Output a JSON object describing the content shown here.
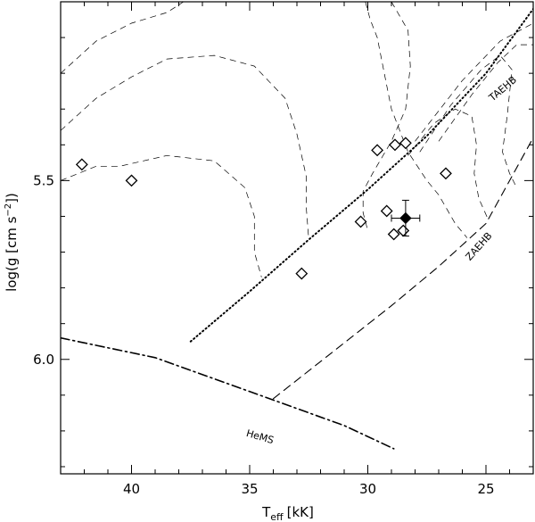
{
  "chart_data": {
    "type": "scatter",
    "title": "",
    "xlabel": "T",
    "xlabel_sub": "eff",
    "xlabel_unit": "[kK]",
    "ylabel": "log(g [cm s",
    "ylabel_sup": "−2",
    "ylabel_close": "])",
    "xlim": [
      43,
      23
    ],
    "ylim": [
      5.0,
      6.32
    ],
    "x_reversed": true,
    "y_reversed": true,
    "grid": false,
    "x_ticks": [
      {
        "value": 40,
        "label": "40"
      },
      {
        "value": 35,
        "label": "35"
      },
      {
        "value": 30,
        "label": "30"
      },
      {
        "value": 25,
        "label": "25"
      }
    ],
    "y_ticks": [
      {
        "value": 5.5,
        "label": "5.5"
      },
      {
        "value": 6.0,
        "label": "6.0"
      }
    ],
    "x_minor_step": 1,
    "y_minor_step": 0.1,
    "sample": {
      "marker": "open-diamond",
      "points": [
        [
          42.1,
          5.455
        ],
        [
          40.0,
          5.5
        ],
        [
          29.6,
          5.415
        ],
        [
          28.85,
          5.4
        ],
        [
          28.4,
          5.395
        ],
        [
          26.7,
          5.48
        ],
        [
          30.3,
          5.615
        ],
        [
          29.2,
          5.585
        ],
        [
          28.9,
          5.65
        ],
        [
          28.5,
          5.64
        ],
        [
          32.8,
          5.76
        ]
      ]
    },
    "target": {
      "marker": "filled-diamond",
      "x": 28.4,
      "y": 5.605,
      "x_err": 0.6,
      "y_err": 0.05
    },
    "curves": [
      {
        "name": "TAEHB",
        "style": "dotted",
        "label_at": [
          24.2,
          5.25
        ],
        "label_angle": -40,
        "points": [
          [
            37.5,
            5.95
          ],
          [
            35.0,
            5.81
          ],
          [
            32.5,
            5.665
          ],
          [
            30.0,
            5.525
          ],
          [
            27.5,
            5.375
          ],
          [
            25.0,
            5.2
          ],
          [
            23.0,
            5.02
          ]
        ]
      },
      {
        "name": "ZAEHB",
        "style": "dashed",
        "label_at": [
          25.2,
          5.69
        ],
        "label_angle": -48,
        "points": [
          [
            34.0,
            6.11
          ],
          [
            31.5,
            5.98
          ],
          [
            29.0,
            5.85
          ],
          [
            27.0,
            5.74
          ],
          [
            25.0,
            5.62
          ],
          [
            23.0,
            5.38
          ]
        ]
      },
      {
        "name": "HeMS",
        "style": "dash-dot",
        "label_at": [
          34.6,
          6.225
        ],
        "label_angle": 16,
        "points": [
          [
            43.0,
            5.94
          ],
          [
            39.0,
            5.995
          ],
          [
            35.0,
            6.09
          ],
          [
            31.0,
            6.185
          ],
          [
            28.9,
            6.25
          ]
        ]
      }
    ],
    "tracks": [
      {
        "style": "thin-dashed",
        "points": [
          [
            43.0,
            5.5
          ],
          [
            41.5,
            5.46
          ],
          [
            40.5,
            5.46
          ],
          [
            38.5,
            5.43
          ],
          [
            36.5,
            5.445
          ],
          [
            35.2,
            5.52
          ],
          [
            34.8,
            5.6
          ],
          [
            34.8,
            5.7
          ],
          [
            34.5,
            5.77
          ]
        ]
      },
      {
        "style": "thin-dashed",
        "points": [
          [
            43.0,
            5.36
          ],
          [
            41.5,
            5.27
          ],
          [
            40.0,
            5.21
          ],
          [
            38.5,
            5.16
          ],
          [
            36.5,
            5.15
          ],
          [
            34.8,
            5.18
          ],
          [
            33.5,
            5.27
          ],
          [
            33.0,
            5.37
          ],
          [
            32.6,
            5.49
          ],
          [
            32.6,
            5.58
          ],
          [
            32.5,
            5.665
          ]
        ]
      },
      {
        "style": "thin-dashed",
        "points": [
          [
            43.0,
            5.2
          ],
          [
            41.5,
            5.11
          ],
          [
            40.0,
            5.06
          ],
          [
            38.5,
            5.03
          ],
          [
            37.8,
            5.0
          ]
        ]
      },
      {
        "style": "thin-dashed",
        "points": [
          [
            29.0,
            5.0
          ],
          [
            28.3,
            5.08
          ],
          [
            28.2,
            5.18
          ],
          [
            28.4,
            5.3
          ],
          [
            29.0,
            5.39
          ],
          [
            29.8,
            5.48
          ],
          [
            30.2,
            5.53
          ],
          [
            30.2,
            5.59
          ],
          [
            30.0,
            5.64
          ]
        ]
      },
      {
        "style": "thin-dashed",
        "points": [
          [
            30.1,
            5.0
          ],
          [
            29.9,
            5.05
          ],
          [
            29.6,
            5.1
          ],
          [
            29.3,
            5.2
          ],
          [
            29.0,
            5.3
          ],
          [
            28.3,
            5.42
          ],
          [
            27.5,
            5.5
          ],
          [
            27.0,
            5.54
          ],
          [
            26.3,
            5.62
          ],
          [
            25.8,
            5.66
          ]
        ]
      },
      {
        "style": "thin-dashed",
        "points": [
          [
            28.3,
            5.43
          ],
          [
            27.2,
            5.34
          ],
          [
            26.3,
            5.3
          ],
          [
            25.6,
            5.32
          ],
          [
            25.4,
            5.4
          ],
          [
            25.5,
            5.48
          ],
          [
            25.3,
            5.55
          ],
          [
            24.9,
            5.61
          ]
        ]
      },
      {
        "style": "thin-dashed",
        "points": [
          [
            27.8,
            5.42
          ],
          [
            26.5,
            5.29
          ],
          [
            25.2,
            5.19
          ],
          [
            24.4,
            5.15
          ],
          [
            23.9,
            5.19
          ],
          [
            24.1,
            5.32
          ],
          [
            24.3,
            5.42
          ],
          [
            24.0,
            5.48
          ],
          [
            23.7,
            5.52
          ]
        ]
      },
      {
        "style": "thin-dashed",
        "points": [
          [
            27.0,
            5.39
          ],
          [
            25.6,
            5.26
          ],
          [
            24.5,
            5.17
          ],
          [
            23.7,
            5.12
          ],
          [
            23.0,
            5.12
          ]
        ]
      },
      {
        "style": "thin-dashed",
        "points": [
          [
            28.0,
            5.39
          ],
          [
            26.0,
            5.22
          ],
          [
            24.4,
            5.11
          ],
          [
            23.0,
            5.06
          ]
        ]
      }
    ]
  }
}
